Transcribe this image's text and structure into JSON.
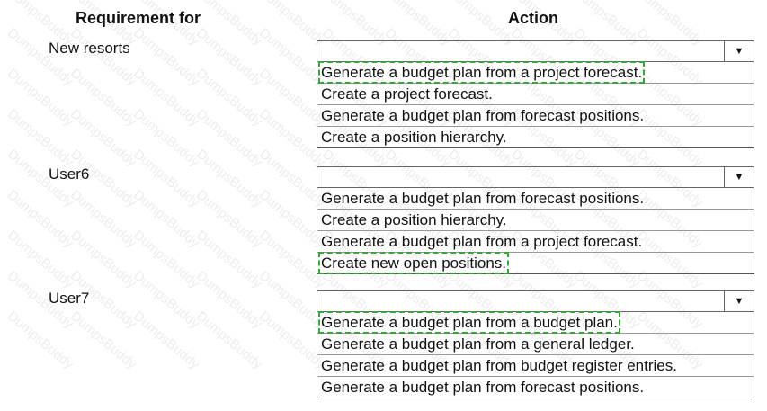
{
  "headers": {
    "requirement": "Requirement for",
    "action": "Action"
  },
  "watermark": "DumpsBuddy",
  "highlight_color": "#3aa43a",
  "rows": [
    {
      "label": "New resorts",
      "selected_index": 0,
      "options": [
        "Generate a budget plan from a project forecast.",
        "Create a project forecast.",
        "Generate a budget plan from forecast positions.",
        "Create a position hierarchy."
      ]
    },
    {
      "label": "User6",
      "selected_index": 3,
      "options": [
        "Generate a budget plan from forecast positions.",
        "Create a position hierarchy.",
        "Generate a budget plan from a project forecast.",
        "Create new open positions."
      ]
    },
    {
      "label": "User7",
      "selected_index": 0,
      "options": [
        "Generate a budget plan from a budget plan.",
        "Generate a budget plan from a general ledger.",
        "Generate a budget plan from budget register entries.",
        "Generate a budget plan from forecast positions."
      ]
    }
  ]
}
